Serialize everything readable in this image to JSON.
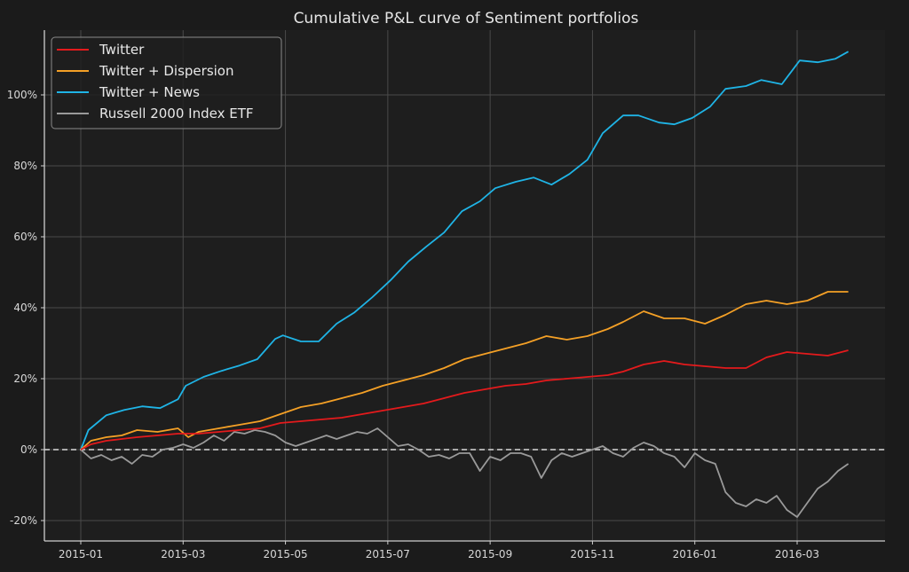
{
  "chart_data": {
    "type": "line",
    "title": "Cumulative P&L curve of Sentiment portfolios",
    "xlabel": "",
    "ylabel": "",
    "x_unit": "months since 2015-01-01",
    "x_range": [
      -0.7,
      15.9
    ],
    "ylim": [
      -26,
      124
    ],
    "grid": true,
    "legend_position": "top-left",
    "x_ticks": [
      {
        "label": "2015-01",
        "value": 0
      },
      {
        "label": "2015-03",
        "value": 2
      },
      {
        "label": "2015-05",
        "value": 4
      },
      {
        "label": "2015-07",
        "value": 6
      },
      {
        "label": "2015-09",
        "value": 8
      },
      {
        "label": "2015-11",
        "value": 10
      },
      {
        "label": "2016-01",
        "value": 12
      },
      {
        "label": "2016-03",
        "value": 14
      }
    ],
    "y_ticks": [
      {
        "label": "-20%",
        "value": -20
      },
      {
        "label": "0%",
        "value": 0
      },
      {
        "label": "20%",
        "value": 20
      },
      {
        "label": "40%",
        "value": 40
      },
      {
        "label": "60%",
        "value": 60
      },
      {
        "label": "80%",
        "value": 80
      },
      {
        "label": "100%",
        "value": 100
      }
    ],
    "zero_line": {
      "value": 0,
      "style": "dashed"
    },
    "series": [
      {
        "name": "Twitter",
        "color": "#e41a1c",
        "x": [
          0,
          0.2,
          0.5,
          0.8,
          1.1,
          1.5,
          1.9,
          2.3,
          2.7,
          3.1,
          3.5,
          3.9,
          4.3,
          4.7,
          5.1,
          5.5,
          5.9,
          6.3,
          6.7,
          7.1,
          7.5,
          7.9,
          8.3,
          8.7,
          9.1,
          9.5,
          9.9,
          10.3,
          10.6,
          11.0,
          11.4,
          11.8,
          12.2,
          12.6,
          13.0,
          13.4,
          13.8,
          14.2,
          14.6,
          15.0
        ],
        "values": [
          0,
          1.5,
          2.5,
          3,
          3.5,
          4,
          4.5,
          4.5,
          5,
          5.5,
          6,
          7.5,
          8,
          8.5,
          9,
          10,
          11,
          12,
          13,
          14.5,
          16,
          17,
          18,
          18.5,
          19.5,
          20,
          20.5,
          21,
          22,
          24,
          25,
          24,
          23.5,
          23,
          23,
          26,
          27.5,
          27,
          26.5,
          28
        ]
      },
      {
        "name": "Twitter + Dispersion",
        "color": "#f4a026",
        "x": [
          0,
          0.2,
          0.5,
          0.8,
          1.1,
          1.5,
          1.9,
          2.1,
          2.3,
          2.7,
          3.1,
          3.5,
          3.9,
          4.3,
          4.7,
          5.1,
          5.5,
          5.9,
          6.3,
          6.7,
          7.1,
          7.5,
          7.9,
          8.3,
          8.7,
          9.1,
          9.5,
          9.9,
          10.3,
          10.6,
          11.0,
          11.4,
          11.8,
          12.2,
          12.6,
          13.0,
          13.4,
          13.8,
          14.2,
          14.6,
          15.0
        ],
        "values": [
          0,
          2.5,
          3.5,
          4,
          5.5,
          5,
          6,
          3.5,
          5,
          6,
          7,
          8,
          10,
          12,
          13,
          14.5,
          16,
          18,
          19.5,
          21,
          23,
          25.5,
          27,
          28.5,
          30,
          32,
          31,
          32,
          34,
          36,
          39,
          37,
          37,
          35.5,
          38,
          41,
          42,
          41,
          42,
          44.5,
          44.5
        ]
      },
      {
        "name": "Twitter + News",
        "color": "#1fb4e6",
        "x": [
          0,
          0.15,
          0.5,
          0.85,
          1.2,
          1.55,
          1.9,
          2.05,
          2.4,
          2.75,
          3.1,
          3.45,
          3.8,
          3.95,
          4.3,
          4.65,
          5.0,
          5.35,
          5.7,
          6.05,
          6.4,
          6.75,
          7.1,
          7.45,
          7.8,
          8.1,
          8.5,
          8.85,
          9.2,
          9.55,
          9.9,
          10.2,
          10.6,
          10.9,
          11.3,
          11.6,
          11.95,
          12.3,
          12.6,
          13.0,
          13.3,
          13.7,
          14.05,
          14.4,
          14.75,
          15.0
        ],
        "values": [
          0,
          5.5,
          9.7,
          11.2,
          12.2,
          11.7,
          14.2,
          18,
          20.5,
          22.2,
          23.7,
          25.5,
          31.2,
          32.2,
          30.5,
          30.5,
          35.5,
          38.7,
          43,
          47.7,
          53,
          57.2,
          61.2,
          67.2,
          70,
          73.7,
          75.5,
          76.7,
          74.7,
          77.7,
          81.7,
          89.2,
          94.2,
          94.2,
          92.2,
          91.7,
          93.5,
          96.7,
          101.7,
          102.5,
          104.2,
          103,
          109.7,
          109.2,
          110.2,
          112.2
        ]
      },
      {
        "name": "Russell 2000 Index ETF",
        "color": "#9a9a9a",
        "x": [
          0,
          0.2,
          0.4,
          0.6,
          0.8,
          1.0,
          1.2,
          1.4,
          1.6,
          1.8,
          2.0,
          2.2,
          2.4,
          2.6,
          2.8,
          3.0,
          3.2,
          3.4,
          3.6,
          3.8,
          4.0,
          4.2,
          4.4,
          4.6,
          4.8,
          5.0,
          5.2,
          5.4,
          5.6,
          5.8,
          6.0,
          6.2,
          6.4,
          6.6,
          6.8,
          7.0,
          7.2,
          7.4,
          7.6,
          7.8,
          8.0,
          8.2,
          8.4,
          8.6,
          8.8,
          9.0,
          9.2,
          9.4,
          9.6,
          9.8,
          10.0,
          10.2,
          10.4,
          10.6,
          10.8,
          11.0,
          11.2,
          11.4,
          11.6,
          11.8,
          12.0,
          12.2,
          12.4,
          12.6,
          12.8,
          13.0,
          13.2,
          13.4,
          13.6,
          13.8,
          14.0,
          14.2,
          14.4,
          14.6,
          14.8,
          15.0
        ],
        "values": [
          0,
          -2.5,
          -1.5,
          -3,
          -2,
          -4,
          -1.5,
          -2,
          0,
          0.5,
          1.5,
          0.5,
          2,
          4,
          2.5,
          5,
          4.5,
          5.5,
          5,
          4,
          2,
          1,
          2,
          3,
          4,
          3,
          4,
          5,
          4.5,
          6,
          3.5,
          1,
          1.5,
          0,
          -2,
          -1.5,
          -2.5,
          -1,
          -1,
          -6,
          -2,
          -3,
          -1,
          -1,
          -2,
          -8,
          -3,
          -1,
          -2,
          -1,
          0,
          1,
          -1,
          -2,
          0.5,
          2,
          1,
          -1,
          -2,
          -5,
          -1,
          -3,
          -4,
          -12,
          -15,
          -16,
          -14,
          -15,
          -13,
          -17,
          -19,
          -15,
          -11,
          -9,
          -6,
          -4
        ]
      }
    ]
  }
}
